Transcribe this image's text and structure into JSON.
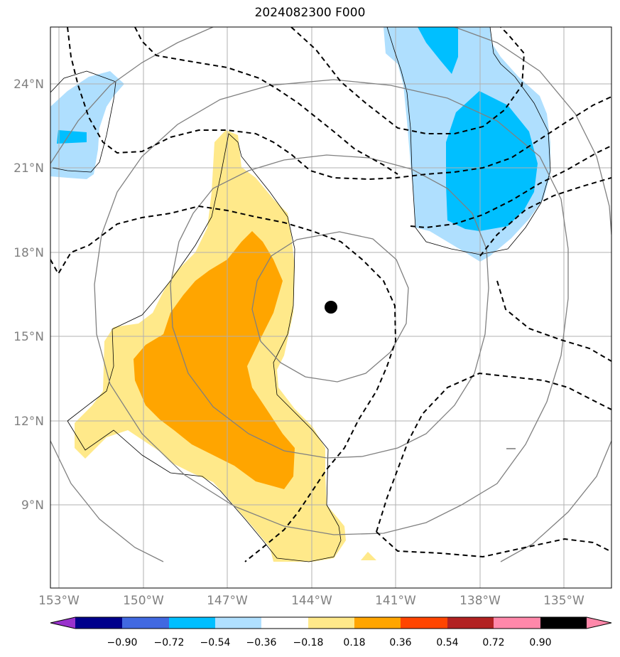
{
  "title": "2024082300 F000",
  "lon_labels": [
    "153°W",
    "150°W",
    "147°W",
    "144°W",
    "141°W",
    "138°W",
    "135°W"
  ],
  "lat_labels": [
    "24°N",
    "21°N",
    "18°N",
    "15°N",
    "12°N",
    "9°N"
  ],
  "colorbar": {
    "labels": [
      "−0.90",
      "−0.72",
      "−0.54",
      "−0.36",
      "−0.18",
      "0.18",
      "0.36",
      "0.54",
      "0.72",
      "0.90"
    ],
    "colors": [
      "#9932cc",
      "#00008b",
      "#4169e1",
      "#00bfff",
      "#b0e0ff",
      "#ffffff",
      "#ffe98a",
      "#ffa500",
      "#ff4500",
      "#b22222",
      "#ff88aa"
    ]
  },
  "colors": {
    "light_blue": "#afdffe",
    "blue": "#00bfff",
    "light_yellow": "#ffe98a",
    "orange": "#ffa500",
    "grid": "#b0b0b0",
    "contour_gray": "#808080",
    "storm_center": "#000000"
  },
  "storm_center": {
    "lon": -143.1,
    "lat": 16.0
  }
}
